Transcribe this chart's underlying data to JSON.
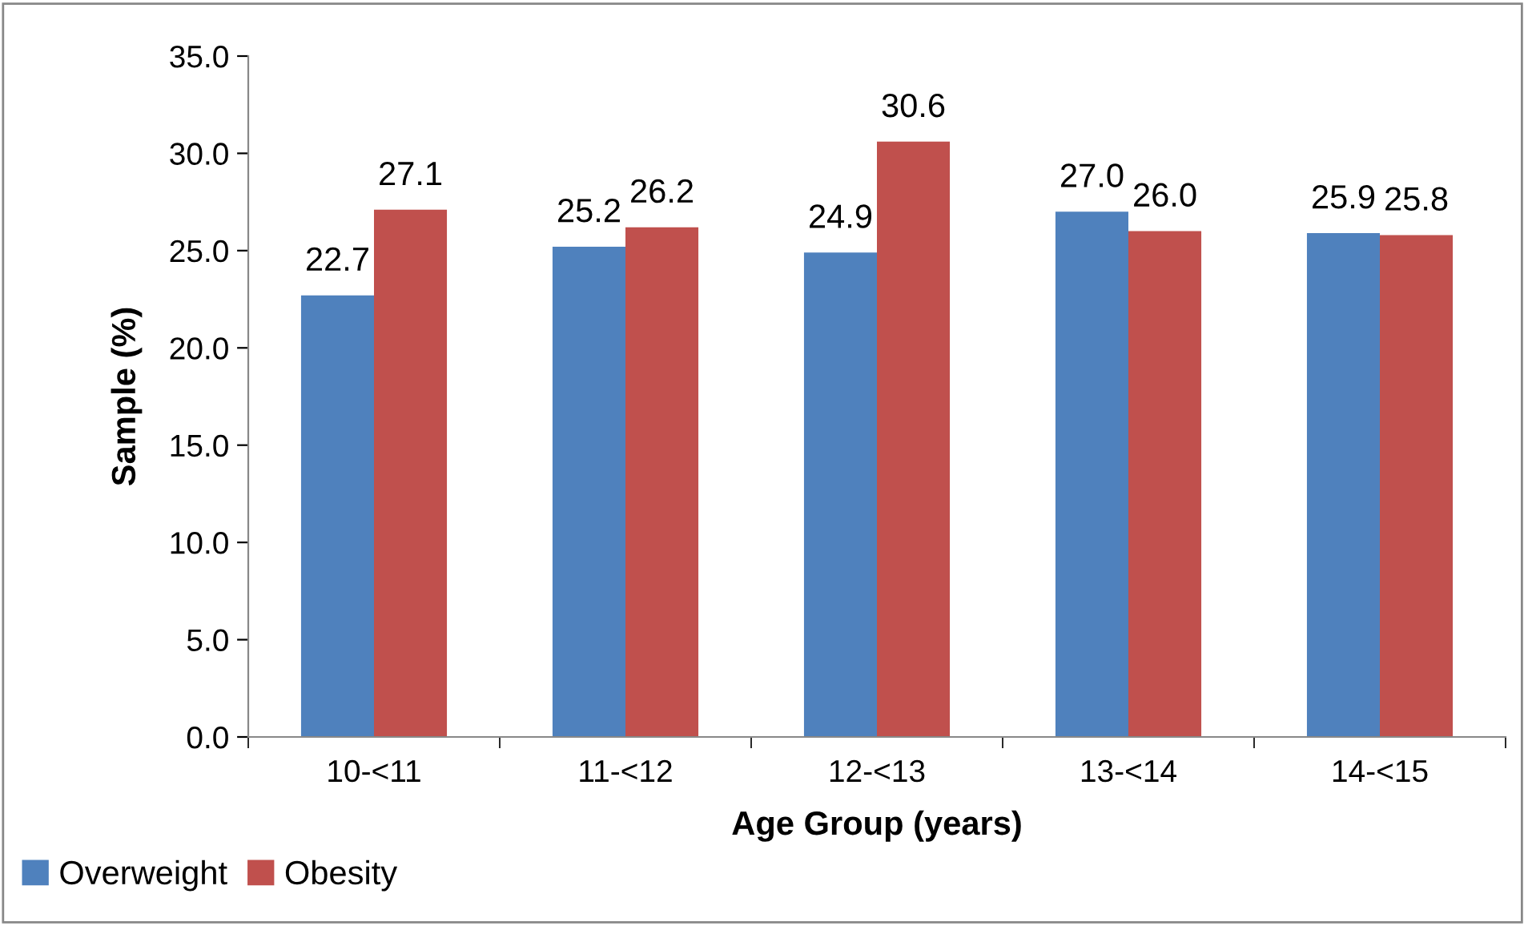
{
  "chart_data": {
    "type": "bar",
    "xlabel": "Age Group (years)",
    "ylabel": "Sample (%)",
    "categories": [
      "10-<11",
      "11-<12",
      "12-<13",
      "13-<14",
      "14-<15"
    ],
    "series": [
      {
        "name": "Overweight",
        "color": "#4f81bd",
        "values": [
          22.7,
          25.2,
          24.9,
          27.0,
          25.9
        ],
        "value_labels": [
          "22.7",
          "25.2",
          "24.9",
          "27.0",
          "25.9"
        ]
      },
      {
        "name": "Obesity",
        "color": "#c0504d",
        "values": [
          27.1,
          26.2,
          30.6,
          26.0,
          25.8
        ],
        "value_labels": [
          "27.1",
          "26.2",
          "30.6",
          "26.0",
          "25.8"
        ]
      }
    ],
    "ylim": [
      0,
      35
    ],
    "yticks": [
      {
        "value": 0,
        "label": "0.0"
      },
      {
        "value": 5,
        "label": "5.0"
      },
      {
        "value": 10,
        "label": "10.0"
      },
      {
        "value": 15,
        "label": "15.0"
      },
      {
        "value": 20,
        "label": "20.0"
      },
      {
        "value": 25,
        "label": "25.0"
      },
      {
        "value": 30,
        "label": "30.0"
      },
      {
        "value": 35,
        "label": "35.0"
      }
    ],
    "grid": false,
    "legend": "bottom left"
  }
}
